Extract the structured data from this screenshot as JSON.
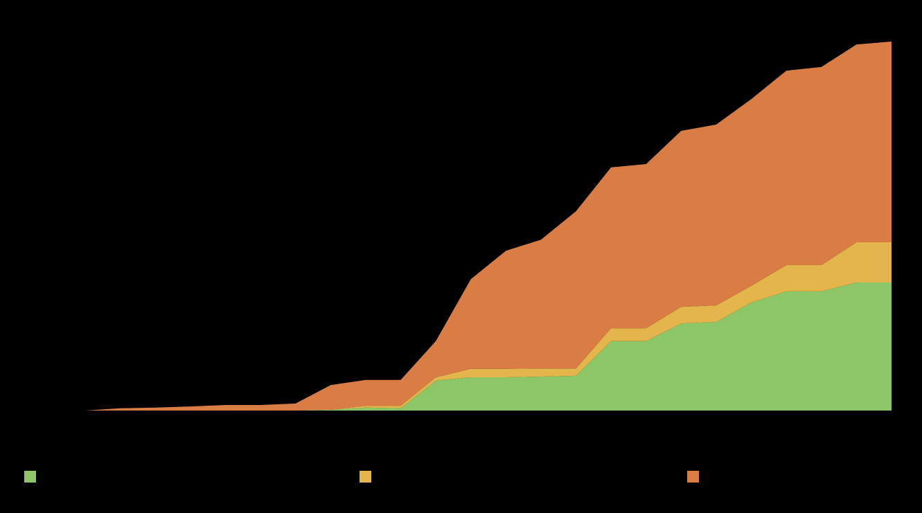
{
  "chart_data": {
    "type": "stacked-area",
    "categories": [
      null,
      null,
      null,
      null,
      null,
      null,
      null,
      null,
      null,
      null,
      null,
      null,
      null,
      null,
      null,
      null,
      null,
      null,
      null,
      null,
      null,
      null,
      null,
      null
    ],
    "ylim": [
      0,
      100
    ],
    "series": [
      {
        "color": "#8dc667",
        "values": [
          0,
          0,
          0,
          0,
          0,
          0,
          0,
          0.2,
          0.8,
          0.6,
          8.1,
          9.0,
          9.0,
          9.2,
          9.4,
          18.8,
          18.8,
          23.6,
          24.0,
          29.3,
          32.3,
          32.3,
          34.7,
          34.7
        ]
      },
      {
        "color": "#e3b54a",
        "values": [
          0,
          0,
          0,
          0,
          0,
          0,
          0,
          0,
          0.5,
          0.7,
          0.9,
          2.3,
          2.3,
          2.2,
          2.0,
          3.5,
          3.5,
          4.5,
          4.5,
          4.5,
          7.1,
          7.1,
          10.9,
          10.9
        ]
      },
      {
        "color": "#d97d45",
        "values": [
          0,
          0.6,
          0.8,
          1.1,
          1.5,
          1.5,
          1.9,
          6.7,
          7.0,
          7.0,
          9.8,
          24.3,
          32.0,
          34.9,
          42.6,
          43.6,
          44.5,
          47.7,
          49.0,
          50.6,
          52.7,
          53.7,
          53.6,
          54.4
        ]
      }
    ]
  }
}
